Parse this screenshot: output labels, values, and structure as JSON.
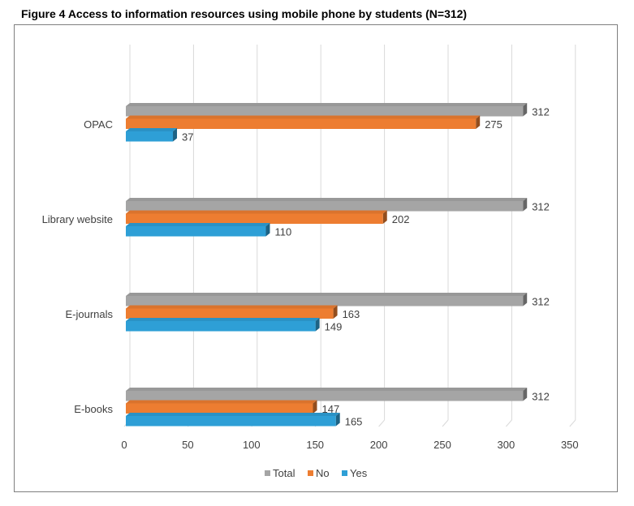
{
  "title": "Figure 4 Access to information resources using mobile phone by students (N=312)",
  "chart_data": {
    "type": "bar",
    "orientation": "horizontal",
    "categories": [
      "OPAC",
      "Library website",
      "E-journals",
      "E-books"
    ],
    "series": [
      {
        "name": "Total",
        "values": [
          312,
          312,
          312,
          312
        ],
        "color": "#a5a5a5"
      },
      {
        "name": "No",
        "values": [
          275,
          202,
          163,
          147
        ],
        "color": "#ed7d31"
      },
      {
        "name": "Yes",
        "values": [
          37,
          110,
          149,
          165
        ],
        "color": "#2e9fd6"
      }
    ],
    "x_ticks": [
      "0",
      "50",
      "100",
      "150",
      "200",
      "250",
      "300",
      "350"
    ],
    "xlim": [
      0,
      350
    ],
    "grid": true,
    "legend_position": "bottom"
  }
}
